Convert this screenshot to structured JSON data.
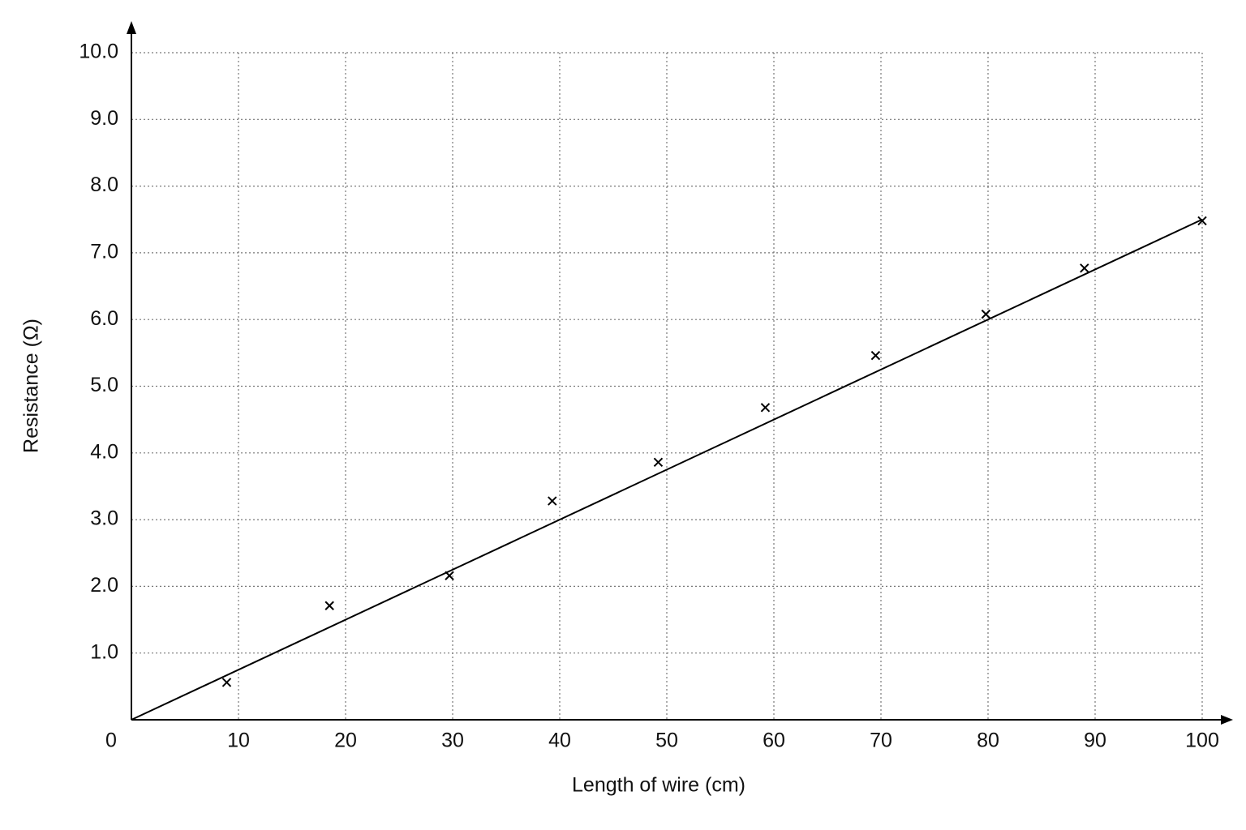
{
  "chart_data": {
    "type": "scatter",
    "x_label": "Length of wire (cm)",
    "y_label": "Resistance (Ω)",
    "x": [
      8.9,
      18.5,
      29.7,
      39.3,
      49.2,
      59.2,
      69.5,
      79.8,
      89.0,
      100
    ],
    "values": [
      0.56,
      1.71,
      2.16,
      3.28,
      3.86,
      4.68,
      5.46,
      6.08,
      6.77,
      7.48
    ],
    "color": "#000000",
    "fit_line": {
      "x": [
        0,
        100
      ],
      "values": [
        0,
        7.5
      ]
    },
    "xlim": [
      0,
      100
    ],
    "ylim": [
      0,
      10
    ],
    "xticks": [
      0,
      10,
      20,
      30,
      40,
      50,
      60,
      70,
      80,
      90,
      100
    ],
    "yticks": [
      {
        "value": 1,
        "label": "1.0"
      },
      {
        "value": 2,
        "label": "2.0"
      },
      {
        "value": 3,
        "label": "3.0"
      },
      {
        "value": 4,
        "label": "4.0"
      },
      {
        "value": 5,
        "label": "5.0"
      },
      {
        "value": 6,
        "label": "6.0"
      },
      {
        "value": 7,
        "label": "7.0"
      },
      {
        "value": 8,
        "label": "8.0"
      },
      {
        "value": 9,
        "label": "9.0"
      },
      {
        "value": 10,
        "label": "10.0"
      }
    ],
    "grid": true
  }
}
